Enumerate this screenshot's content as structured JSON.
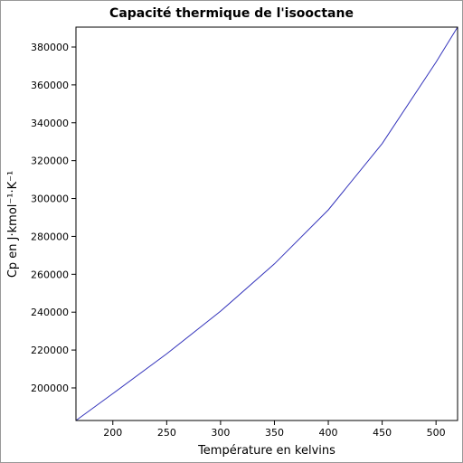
{
  "chart_data": {
    "type": "line",
    "title": "Capacité thermique de l'isooctane",
    "x_label": "Température en kelvins",
    "y_label": "Cp en J·kmol⁻¹·K⁻¹",
    "x": [
      165.78,
      200,
      250,
      300,
      350,
      400,
      450,
      500,
      520
    ],
    "series": [
      {
        "name": "Cp",
        "color": "#3333bb",
        "values": [
          182800,
          197000,
          218000,
          240500,
          265500,
          294000,
          329000,
          372000,
          390500
        ]
      }
    ],
    "xlim": [
      165.78,
      520
    ],
    "ylim": [
      182800,
      390500
    ],
    "xticks": [
      200,
      250,
      300,
      350,
      400,
      450,
      500
    ],
    "yticks": [
      200000,
      220000,
      240000,
      260000,
      280000,
      300000,
      320000,
      340000,
      360000,
      380000
    ]
  }
}
